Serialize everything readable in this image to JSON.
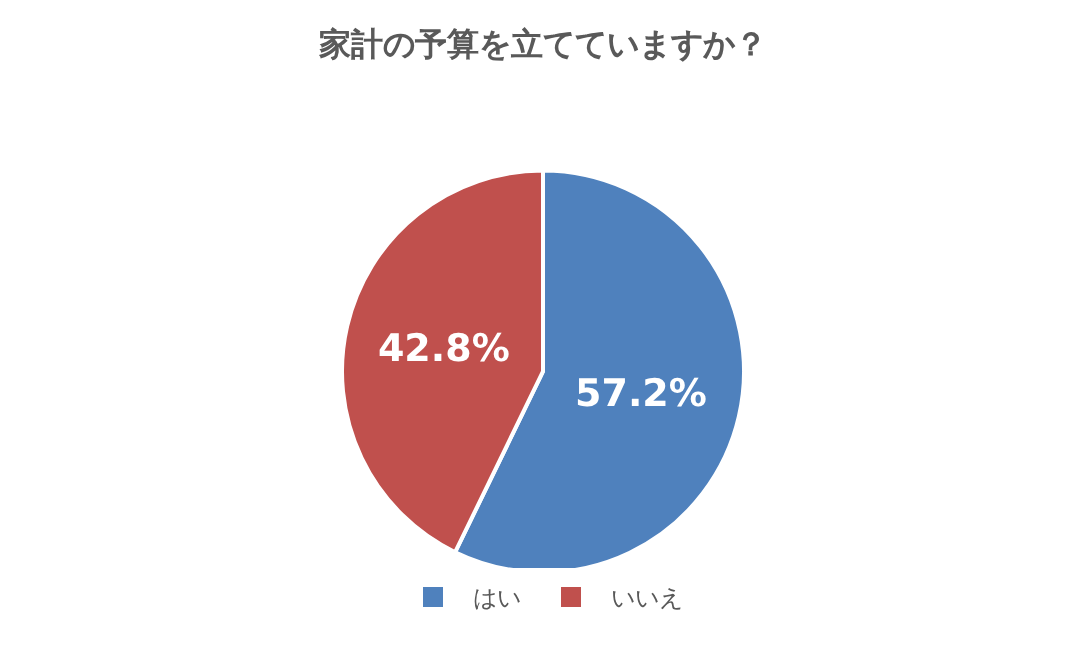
{
  "chart_data": {
    "type": "pie",
    "title": "家計の予算を立てていますか？",
    "categories": [
      "はい",
      "いいえ"
    ],
    "values": [
      57.2,
      42.8
    ],
    "colors": [
      "#4f81bd",
      "#c0504d"
    ],
    "value_labels": [
      "57.2%",
      "42.8%"
    ],
    "legend": "bottom"
  }
}
